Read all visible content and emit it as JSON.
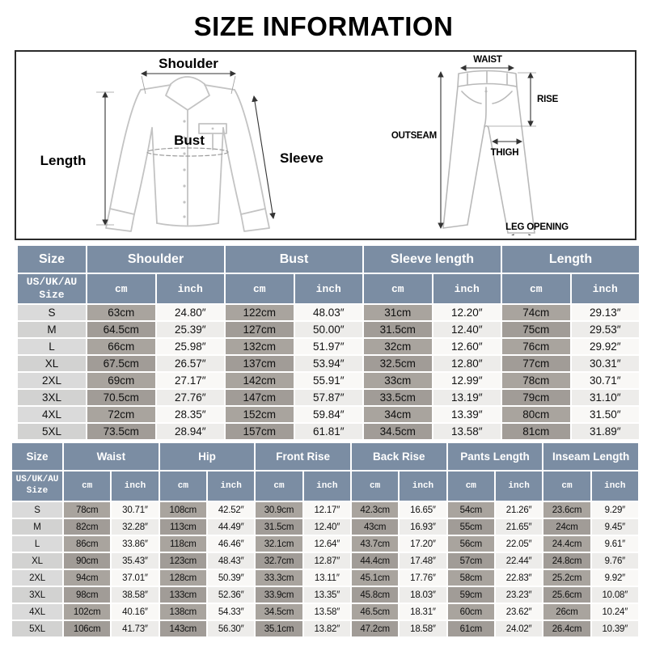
{
  "title": "SIZE INFORMATION",
  "colors": {
    "header": "#7b8da3",
    "size-odd": "#dadada",
    "size-even": "#d2d2d1",
    "cm-odd": "#a9a49e",
    "cm-even": "#a19c97",
    "inch-odd": "#f9f8f6",
    "inch-even": "#edecea"
  },
  "shirt_diagram": {
    "shoulder": "Shoulder",
    "length": "Length",
    "bust": "Bust",
    "sleeve": "Sleeve"
  },
  "pants_diagram": {
    "waist": "WAIST",
    "rise": "RISE",
    "outseam": "OUTSEAM",
    "thigh": "THIGH",
    "leg_opening": "LEG OPENING"
  },
  "shirt_table": {
    "size_header": "Size",
    "size_subheader": "US/UK/AU\nSize",
    "unit_cm": "cm",
    "unit_inch": "inch",
    "groups": [
      "Shoulder",
      "Bust",
      "Sleeve length",
      "Length"
    ],
    "rows": [
      {
        "size": "S",
        "values": [
          "63cm",
          "24.80″",
          "122cm",
          "48.03″",
          "31cm",
          "12.20″",
          "74cm",
          "29.13″"
        ]
      },
      {
        "size": "M",
        "values": [
          "64.5cm",
          "25.39″",
          "127cm",
          "50.00″",
          "31.5cm",
          "12.40″",
          "75cm",
          "29.53″"
        ]
      },
      {
        "size": "L",
        "values": [
          "66cm",
          "25.98″",
          "132cm",
          "51.97″",
          "32cm",
          "12.60″",
          "76cm",
          "29.92″"
        ]
      },
      {
        "size": "XL",
        "values": [
          "67.5cm",
          "26.57″",
          "137cm",
          "53.94″",
          "32.5cm",
          "12.80″",
          "77cm",
          "30.31″"
        ]
      },
      {
        "size": "2XL",
        "values": [
          "69cm",
          "27.17″",
          "142cm",
          "55.91″",
          "33cm",
          "12.99″",
          "78cm",
          "30.71″"
        ]
      },
      {
        "size": "3XL",
        "values": [
          "70.5cm",
          "27.76″",
          "147cm",
          "57.87″",
          "33.5cm",
          "13.19″",
          "79cm",
          "31.10″"
        ]
      },
      {
        "size": "4XL",
        "values": [
          "72cm",
          "28.35″",
          "152cm",
          "59.84″",
          "34cm",
          "13.39″",
          "80cm",
          "31.50″"
        ]
      },
      {
        "size": "5XL",
        "values": [
          "73.5cm",
          "28.94″",
          "157cm",
          "61.81″",
          "34.5cm",
          "13.58″",
          "81cm",
          "31.89″"
        ]
      }
    ]
  },
  "pants_table": {
    "size_header": "Size",
    "size_subheader": "US/UK/AU\nSize",
    "unit_cm": "cm",
    "unit_inch": "inch",
    "groups": [
      "Waist",
      "Hip",
      "Front Rise",
      "Back Rise",
      "Pants Length",
      "Inseam Length"
    ],
    "rows": [
      {
        "size": "S",
        "values": [
          "78cm",
          "30.71″",
          "108cm",
          "42.52″",
          "30.9cm",
          "12.17″",
          "42.3cm",
          "16.65″",
          "54cm",
          "21.26″",
          "23.6cm",
          "9.29″"
        ]
      },
      {
        "size": "M",
        "values": [
          "82cm",
          "32.28″",
          "113cm",
          "44.49″",
          "31.5cm",
          "12.40″",
          "43cm",
          "16.93″",
          "55cm",
          "21.65″",
          "24cm",
          "9.45″"
        ]
      },
      {
        "size": "L",
        "values": [
          "86cm",
          "33.86″",
          "118cm",
          "46.46″",
          "32.1cm",
          "12.64″",
          "43.7cm",
          "17.20″",
          "56cm",
          "22.05″",
          "24.4cm",
          "9.61″"
        ]
      },
      {
        "size": "XL",
        "values": [
          "90cm",
          "35.43″",
          "123cm",
          "48.43″",
          "32.7cm",
          "12.87″",
          "44.4cm",
          "17.48″",
          "57cm",
          "22.44″",
          "24.8cm",
          "9.76″"
        ]
      },
      {
        "size": "2XL",
        "values": [
          "94cm",
          "37.01″",
          "128cm",
          "50.39″",
          "33.3cm",
          "13.11″",
          "45.1cm",
          "17.76″",
          "58cm",
          "22.83″",
          "25.2cm",
          "9.92″"
        ]
      },
      {
        "size": "3XL",
        "values": [
          "98cm",
          "38.58″",
          "133cm",
          "52.36″",
          "33.9cm",
          "13.35″",
          "45.8cm",
          "18.03″",
          "59cm",
          "23.23″",
          "25.6cm",
          "10.08″"
        ]
      },
      {
        "size": "4XL",
        "values": [
          "102cm",
          "40.16″",
          "138cm",
          "54.33″",
          "34.5cm",
          "13.58″",
          "46.5cm",
          "18.31″",
          "60cm",
          "23.62″",
          "26cm",
          "10.24″"
        ]
      },
      {
        "size": "5XL",
        "values": [
          "106cm",
          "41.73″",
          "143cm",
          "56.30″",
          "35.1cm",
          "13.82″",
          "47.2cm",
          "18.58″",
          "61cm",
          "24.02″",
          "26.4cm",
          "10.39″"
        ]
      }
    ]
  }
}
